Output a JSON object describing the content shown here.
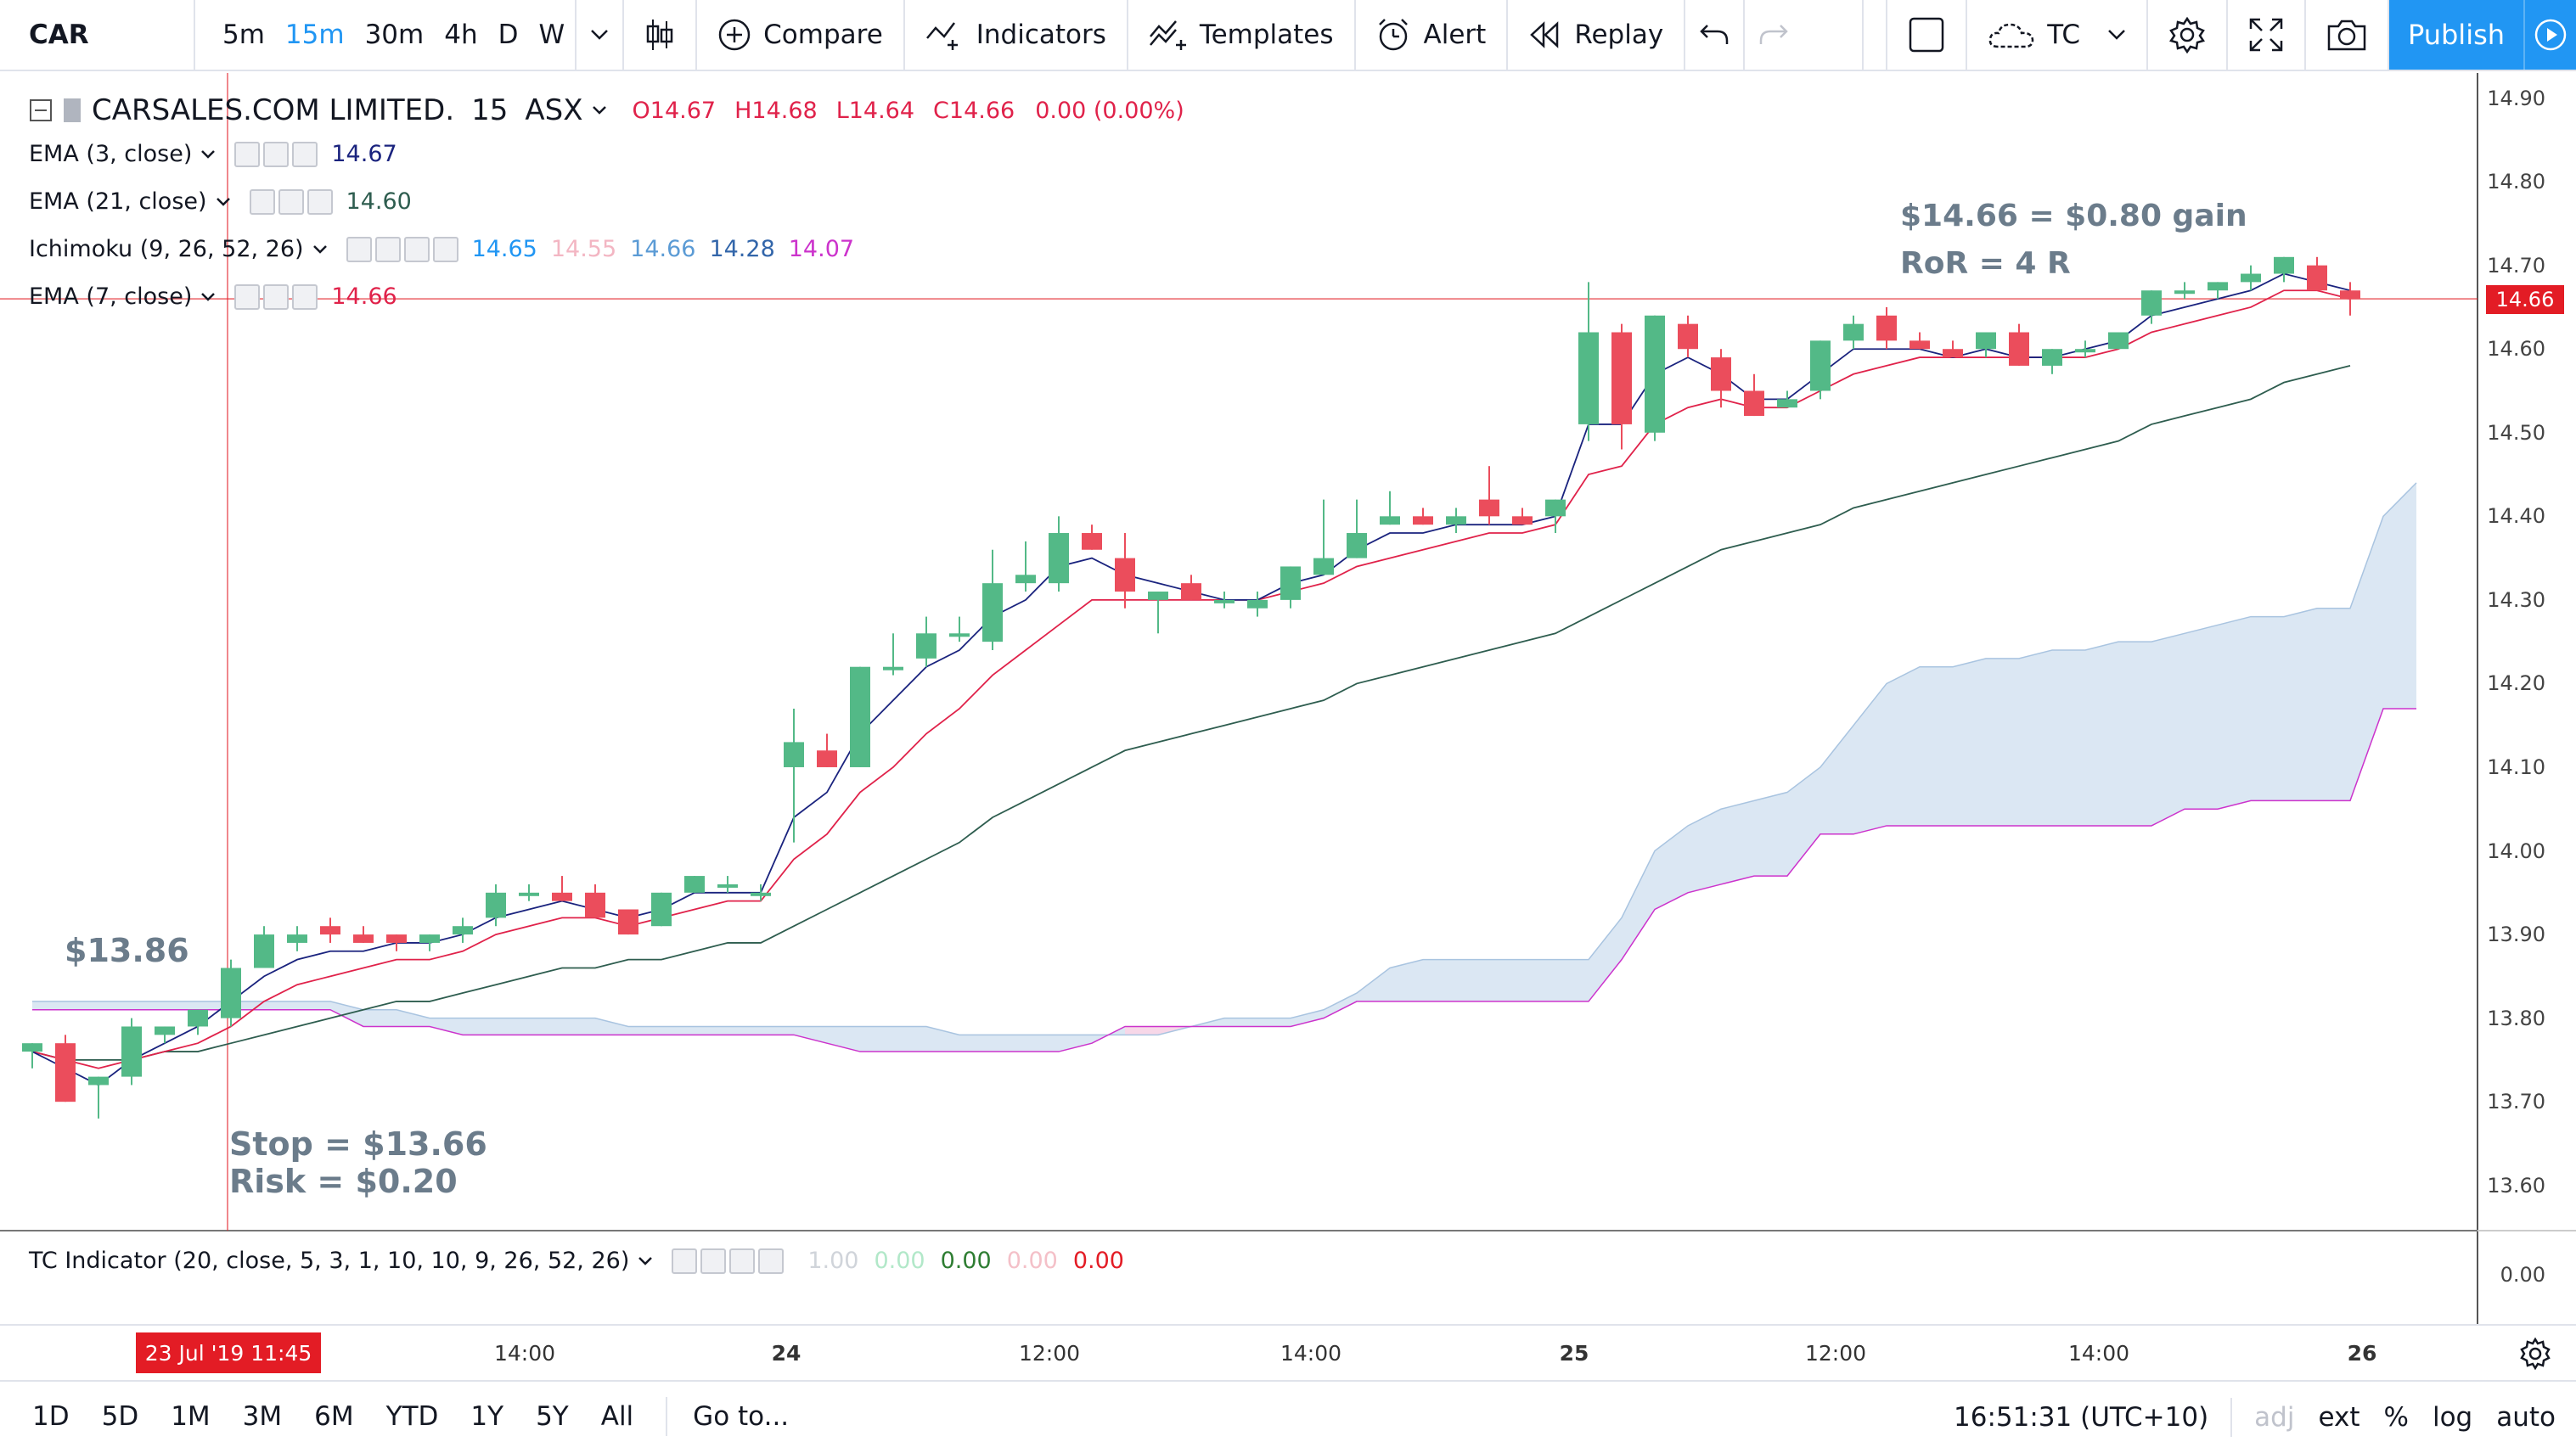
{
  "toolbar": {
    "symbol": "CAR",
    "intervals": [
      "5m",
      "15m",
      "30m",
      "4h",
      "D",
      "W"
    ],
    "active_interval": "15m",
    "compare_label": "Compare",
    "indicators_label": "Indicators",
    "templates_label": "Templates",
    "alert_label": "Alert",
    "replay_label": "Replay",
    "layout_label": "TC",
    "publish_label": "Publish"
  },
  "legend": {
    "symbol_name": "CARSALES.COM LIMITED.",
    "interval": "15",
    "exchange": "ASX",
    "open": "O14.67",
    "high": "H14.68",
    "low": "L14.64",
    "close": "C14.66",
    "change": "0.00 (0.00%)",
    "studies": [
      {
        "label": "EMA (3, close)",
        "values": [
          "14.67"
        ],
        "colors": [
          "#1a237e"
        ]
      },
      {
        "label": "EMA (21, close)",
        "values": [
          "14.60"
        ],
        "colors": [
          "#2e5d4f"
        ]
      },
      {
        "label": "Ichimoku (9, 26, 52, 26)",
        "values": [
          "14.65",
          "14.55",
          "14.66",
          "14.28",
          "14.07"
        ],
        "colors": [
          "#2196f3",
          "#f3b6c3",
          "#5b9bd5",
          "#3366aa",
          "#cc33cc"
        ]
      },
      {
        "label": "EMA (7, close)",
        "values": [
          "14.66"
        ],
        "colors": [
          "#e0224a"
        ]
      }
    ]
  },
  "annotations": {
    "gain": "$14.66 = $0.80 gain",
    "ror": "RoR = 4 R",
    "entry": "$13.86",
    "stop": "Stop = $13.66",
    "risk": "Risk = $0.20"
  },
  "price_axis": {
    "labels": [
      "14.90",
      "14.80",
      "14.70",
      "14.60",
      "14.50",
      "14.40",
      "14.30",
      "14.20",
      "14.10",
      "14.00",
      "13.90",
      "13.80",
      "13.70",
      "13.60"
    ],
    "last_price": "14.66"
  },
  "indicator_pane": {
    "label": "TC Indicator (20, close, 5, 3, 1, 10, 10, 9, 26, 52, 26)",
    "values": [
      "1.00",
      "0.00",
      "0.00",
      "0.00",
      "0.00"
    ],
    "value_colors": [
      "#d0d4da",
      "#b2e8c9",
      "#2e7d32",
      "#f4c0c8",
      "#e31c25"
    ],
    "axis_label": "0.00"
  },
  "time_axis": {
    "labels": [
      "14:00",
      "24",
      "12:00",
      "14:00",
      "25",
      "12:00",
      "14:00",
      "26"
    ],
    "cursor_label": "23 Jul '19   11:45"
  },
  "bottom": {
    "ranges": [
      "1D",
      "5D",
      "1M",
      "3M",
      "6M",
      "YTD",
      "1Y",
      "5Y",
      "All"
    ],
    "goto_label": "Go to...",
    "clock": "16:51:31 (UTC+10)",
    "options": [
      "adj",
      "ext",
      "%",
      "log",
      "auto"
    ]
  },
  "colors": {
    "up": "#53b987",
    "down": "#eb4d5c",
    "ema3": "#1a237e",
    "ema7": "#e0224a",
    "ema21": "#2e5d4f",
    "cloud_bull": "#dbe7f3",
    "cloud_bear": "#f7d7e8",
    "lead_b": "#cc33cc"
  },
  "chart_data": {
    "type": "candlestick",
    "ylim": [
      13.55,
      14.93
    ],
    "candles": [
      [
        13.76,
        13.77,
        13.74,
        13.77
      ],
      [
        13.77,
        13.78,
        13.7,
        13.7
      ],
      [
        13.72,
        13.73,
        13.68,
        13.73
      ],
      [
        13.73,
        13.8,
        13.72,
        13.79
      ],
      [
        13.78,
        13.79,
        13.77,
        13.79
      ],
      [
        13.79,
        13.81,
        13.78,
        13.81
      ],
      [
        13.8,
        13.87,
        13.79,
        13.86
      ],
      [
        13.86,
        13.91,
        13.86,
        13.9
      ],
      [
        13.89,
        13.91,
        13.88,
        13.9
      ],
      [
        13.91,
        13.92,
        13.89,
        13.9
      ],
      [
        13.9,
        13.91,
        13.89,
        13.89
      ],
      [
        13.9,
        13.9,
        13.88,
        13.89
      ],
      [
        13.89,
        13.9,
        13.88,
        13.9
      ],
      [
        13.9,
        13.92,
        13.89,
        13.91
      ],
      [
        13.92,
        13.96,
        13.91,
        13.95
      ],
      [
        13.95,
        13.96,
        13.94,
        13.95
      ],
      [
        13.95,
        13.97,
        13.94,
        13.94
      ],
      [
        13.95,
        13.96,
        13.92,
        13.92
      ],
      [
        13.93,
        13.93,
        13.9,
        13.9
      ],
      [
        13.91,
        13.95,
        13.91,
        13.95
      ],
      [
        13.95,
        13.97,
        13.95,
        13.97
      ],
      [
        13.96,
        13.97,
        13.95,
        13.96
      ],
      [
        13.95,
        13.96,
        13.94,
        13.95
      ],
      [
        14.1,
        14.17,
        14.01,
        14.13
      ],
      [
        14.12,
        14.14,
        14.1,
        14.1
      ],
      [
        14.1,
        14.22,
        14.1,
        14.22
      ],
      [
        14.22,
        14.26,
        14.21,
        14.22
      ],
      [
        14.23,
        14.28,
        14.22,
        14.26
      ],
      [
        14.26,
        14.28,
        14.25,
        14.26
      ],
      [
        14.25,
        14.36,
        14.24,
        14.32
      ],
      [
        14.32,
        14.37,
        14.31,
        14.33
      ],
      [
        14.32,
        14.4,
        14.31,
        14.38
      ],
      [
        14.38,
        14.39,
        14.36,
        14.36
      ],
      [
        14.35,
        14.38,
        14.29,
        14.31
      ],
      [
        14.3,
        14.31,
        14.26,
        14.31
      ],
      [
        14.32,
        14.33,
        14.3,
        14.3
      ],
      [
        14.3,
        14.31,
        14.29,
        14.3
      ],
      [
        14.29,
        14.31,
        14.28,
        14.3
      ],
      [
        14.3,
        14.34,
        14.29,
        14.34
      ],
      [
        14.33,
        14.42,
        14.33,
        14.35
      ],
      [
        14.35,
        14.42,
        14.35,
        14.38
      ],
      [
        14.39,
        14.43,
        14.39,
        14.4
      ],
      [
        14.4,
        14.41,
        14.39,
        14.39
      ],
      [
        14.39,
        14.41,
        14.38,
        14.4
      ],
      [
        14.42,
        14.46,
        14.39,
        14.4
      ],
      [
        14.4,
        14.41,
        14.39,
        14.39
      ],
      [
        14.4,
        14.42,
        14.38,
        14.42
      ],
      [
        14.51,
        14.68,
        14.49,
        14.62
      ],
      [
        14.62,
        14.63,
        14.48,
        14.51
      ],
      [
        14.5,
        14.64,
        14.49,
        14.64
      ],
      [
        14.63,
        14.64,
        14.59,
        14.6
      ],
      [
        14.59,
        14.6,
        14.53,
        14.55
      ],
      [
        14.55,
        14.57,
        14.52,
        14.52
      ],
      [
        14.53,
        14.55,
        14.53,
        14.54
      ],
      [
        14.55,
        14.61,
        14.54,
        14.61
      ],
      [
        14.61,
        14.64,
        14.6,
        14.63
      ],
      [
        14.64,
        14.65,
        14.6,
        14.61
      ],
      [
        14.61,
        14.62,
        14.6,
        14.6
      ],
      [
        14.6,
        14.61,
        14.59,
        14.59
      ],
      [
        14.6,
        14.62,
        14.59,
        14.62
      ],
      [
        14.62,
        14.63,
        14.58,
        14.58
      ],
      [
        14.58,
        14.6,
        14.57,
        14.6
      ],
      [
        14.6,
        14.61,
        14.59,
        14.6
      ],
      [
        14.6,
        14.62,
        14.6,
        14.62
      ],
      [
        14.64,
        14.67,
        14.63,
        14.67
      ],
      [
        14.67,
        14.68,
        14.66,
        14.67
      ],
      [
        14.67,
        14.68,
        14.66,
        14.68
      ],
      [
        14.68,
        14.7,
        14.67,
        14.69
      ],
      [
        14.69,
        14.71,
        14.68,
        14.71
      ],
      [
        14.7,
        14.71,
        14.67,
        14.67
      ],
      [
        14.67,
        14.68,
        14.64,
        14.66
      ]
    ],
    "ema3": [
      13.76,
      13.74,
      13.72,
      13.75,
      13.77,
      13.79,
      13.82,
      13.85,
      13.87,
      13.88,
      13.88,
      13.89,
      13.89,
      13.9,
      13.92,
      13.93,
      13.94,
      13.93,
      13.92,
      13.93,
      13.95,
      13.95,
      13.95,
      14.04,
      14.07,
      14.14,
      14.18,
      14.22,
      14.24,
      14.28,
      14.3,
      14.34,
      14.35,
      14.33,
      14.32,
      14.31,
      14.3,
      14.3,
      14.32,
      14.33,
      14.36,
      14.38,
      14.38,
      14.39,
      14.39,
      14.39,
      14.4,
      14.51,
      14.51,
      14.57,
      14.59,
      14.57,
      14.54,
      14.54,
      14.57,
      14.6,
      14.6,
      14.6,
      14.59,
      14.6,
      14.59,
      14.59,
      14.6,
      14.61,
      14.64,
      14.65,
      14.66,
      14.67,
      14.69,
      14.68,
      14.67
    ],
    "ema7": [
      13.76,
      13.75,
      13.74,
      13.75,
      13.76,
      13.77,
      13.79,
      13.82,
      13.84,
      13.85,
      13.86,
      13.87,
      13.87,
      13.88,
      13.9,
      13.91,
      13.92,
      13.92,
      13.91,
      13.92,
      13.93,
      13.94,
      13.94,
      13.99,
      14.02,
      14.07,
      14.1,
      14.14,
      14.17,
      14.21,
      14.24,
      14.27,
      14.3,
      14.3,
      14.3,
      14.3,
      14.3,
      14.3,
      14.31,
      14.32,
      14.34,
      14.35,
      14.36,
      14.37,
      14.38,
      14.38,
      14.39,
      14.45,
      14.46,
      14.51,
      14.53,
      14.54,
      14.53,
      14.53,
      14.55,
      14.57,
      14.58,
      14.59,
      14.59,
      14.59,
      14.59,
      14.59,
      14.59,
      14.6,
      14.62,
      14.63,
      14.64,
      14.65,
      14.67,
      14.67,
      14.66
    ],
    "ema21": [
      13.76,
      13.75,
      13.75,
      13.75,
      13.76,
      13.76,
      13.77,
      13.78,
      13.79,
      13.8,
      13.81,
      13.82,
      13.82,
      13.83,
      13.84,
      13.85,
      13.86,
      13.86,
      13.87,
      13.87,
      13.88,
      13.89,
      13.89,
      13.91,
      13.93,
      13.95,
      13.97,
      13.99,
      14.01,
      14.04,
      14.06,
      14.08,
      14.1,
      14.12,
      14.13,
      14.14,
      14.15,
      14.16,
      14.17,
      14.18,
      14.2,
      14.21,
      14.22,
      14.23,
      14.24,
      14.25,
      14.26,
      14.28,
      14.3,
      14.32,
      14.34,
      14.36,
      14.37,
      14.38,
      14.39,
      14.41,
      14.42,
      14.43,
      14.44,
      14.45,
      14.46,
      14.47,
      14.48,
      14.49,
      14.51,
      14.52,
      14.53,
      14.54,
      14.56,
      14.57,
      14.58
    ],
    "senkou_a": [
      13.82,
      13.82,
      13.82,
      13.82,
      13.82,
      13.82,
      13.82,
      13.82,
      13.82,
      13.82,
      13.81,
      13.81,
      13.8,
      13.8,
      13.8,
      13.8,
      13.8,
      13.8,
      13.79,
      13.79,
      13.79,
      13.79,
      13.79,
      13.79,
      13.79,
      13.79,
      13.79,
      13.79,
      13.78,
      13.78,
      13.78,
      13.78,
      13.78,
      13.78,
      13.78,
      13.79,
      13.8,
      13.8,
      13.8,
      13.81,
      13.83,
      13.86,
      13.87,
      13.87,
      13.87,
      13.87,
      13.87,
      13.87,
      13.92,
      14.0,
      14.03,
      14.05,
      14.06,
      14.07,
      14.1,
      14.15,
      14.2,
      14.22,
      14.22,
      14.23,
      14.23,
      14.24,
      14.24,
      14.25,
      14.25,
      14.26,
      14.27,
      14.28,
      14.28,
      14.29,
      14.29,
      14.4,
      14.44
    ],
    "senkou_b": [
      13.81,
      13.81,
      13.81,
      13.81,
      13.81,
      13.81,
      13.81,
      13.81,
      13.81,
      13.81,
      13.79,
      13.79,
      13.79,
      13.78,
      13.78,
      13.78,
      13.78,
      13.78,
      13.78,
      13.78,
      13.78,
      13.78,
      13.78,
      13.78,
      13.77,
      13.76,
      13.76,
      13.76,
      13.76,
      13.76,
      13.76,
      13.76,
      13.77,
      13.79,
      13.79,
      13.79,
      13.79,
      13.79,
      13.79,
      13.8,
      13.82,
      13.82,
      13.82,
      13.82,
      13.82,
      13.82,
      13.82,
      13.82,
      13.87,
      13.93,
      13.95,
      13.96,
      13.97,
      13.97,
      14.02,
      14.02,
      14.03,
      14.03,
      14.03,
      14.03,
      14.03,
      14.03,
      14.03,
      14.03,
      14.03,
      14.05,
      14.05,
      14.06,
      14.06,
      14.06,
      14.06,
      14.17,
      14.17
    ],
    "tc_arrows": [
      0,
      0,
      0,
      0,
      0,
      0,
      1,
      1,
      1,
      1,
      1,
      1,
      1,
      2,
      1,
      2,
      2,
      2,
      2,
      2,
      2,
      2,
      0,
      1,
      2,
      1,
      2,
      1,
      2,
      1,
      2,
      1,
      0,
      2,
      0,
      0,
      0,
      0,
      0,
      0,
      2,
      0,
      0,
      0,
      0,
      0,
      0,
      0,
      0,
      0,
      0,
      0,
      0,
      0,
      0,
      0,
      2,
      0,
      0,
      0,
      0,
      0,
      0,
      0,
      1,
      0,
      1,
      1,
      1,
      2,
      0
    ]
  }
}
